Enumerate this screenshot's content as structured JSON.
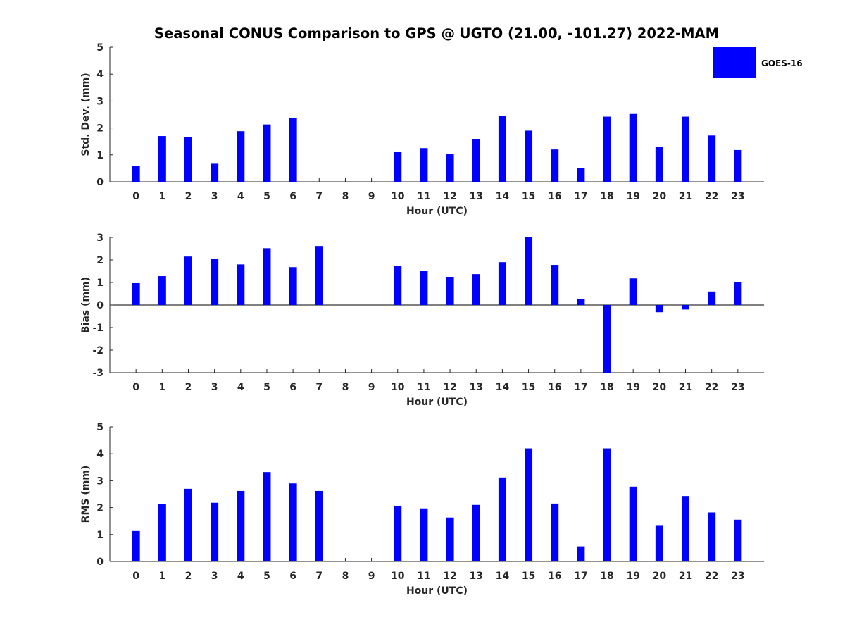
{
  "title": "Seasonal CONUS Comparison to GPS @ UGTO (21.00, -101.27) 2022-MAM",
  "legend": {
    "label": "GOES-16",
    "color": "#0000ff",
    "placement": "top-right"
  },
  "chart_data": [
    {
      "type": "bar",
      "ylabel": "Std. Dev. (mm)",
      "xlabel": "Hour (UTC)",
      "ylim": [
        0,
        5
      ],
      "yticks": [
        0,
        1,
        2,
        3,
        4,
        5
      ],
      "categories": [
        "0",
        "1",
        "2",
        "3",
        "4",
        "5",
        "6",
        "7",
        "8",
        "9",
        "10",
        "11",
        "12",
        "13",
        "14",
        "15",
        "16",
        "17",
        "18",
        "19",
        "20",
        "21",
        "22",
        "23"
      ],
      "series": [
        {
          "name": "GOES-16",
          "values": [
            0.6,
            1.7,
            1.65,
            0.67,
            1.88,
            2.13,
            2.37,
            null,
            null,
            null,
            1.1,
            1.25,
            1.02,
            1.57,
            2.45,
            1.9,
            1.2,
            0.5,
            2.42,
            2.52,
            1.3,
            2.42,
            1.72,
            1.18
          ]
        }
      ]
    },
    {
      "type": "bar",
      "ylabel": "Bias (mm)",
      "xlabel": "Hour (UTC)",
      "ylim": [
        -3,
        3
      ],
      "yticks": [
        -3,
        -2,
        -1,
        0,
        1,
        2,
        3
      ],
      "categories": [
        "0",
        "1",
        "2",
        "3",
        "4",
        "5",
        "6",
        "7",
        "8",
        "9",
        "10",
        "11",
        "12",
        "13",
        "14",
        "15",
        "16",
        "17",
        "18",
        "19",
        "20",
        "21",
        "22",
        "23"
      ],
      "series": [
        {
          "name": "GOES-16",
          "values": [
            0.97,
            1.28,
            2.15,
            2.05,
            1.8,
            2.52,
            1.68,
            2.62,
            null,
            null,
            1.75,
            1.53,
            1.25,
            1.37,
            1.9,
            3.0,
            1.78,
            0.25,
            -3.0,
            1.18,
            -0.32,
            -0.2,
            0.6,
            1.0
          ]
        }
      ]
    },
    {
      "type": "bar",
      "ylabel": "RMS (mm)",
      "xlabel": "Hour (UTC)",
      "ylim": [
        0,
        5
      ],
      "yticks": [
        0,
        1,
        2,
        3,
        4,
        5
      ],
      "categories": [
        "0",
        "1",
        "2",
        "3",
        "4",
        "5",
        "6",
        "7",
        "8",
        "9",
        "10",
        "11",
        "12",
        "13",
        "14",
        "15",
        "16",
        "17",
        "18",
        "19",
        "20",
        "21",
        "22",
        "23"
      ],
      "series": [
        {
          "name": "GOES-16",
          "values": [
            1.13,
            2.12,
            2.7,
            2.18,
            2.62,
            3.32,
            2.9,
            2.62,
            null,
            null,
            2.07,
            1.97,
            1.63,
            2.1,
            3.12,
            4.2,
            2.15,
            0.56,
            4.2,
            2.78,
            1.35,
            2.43,
            1.82,
            1.55
          ]
        }
      ]
    }
  ]
}
